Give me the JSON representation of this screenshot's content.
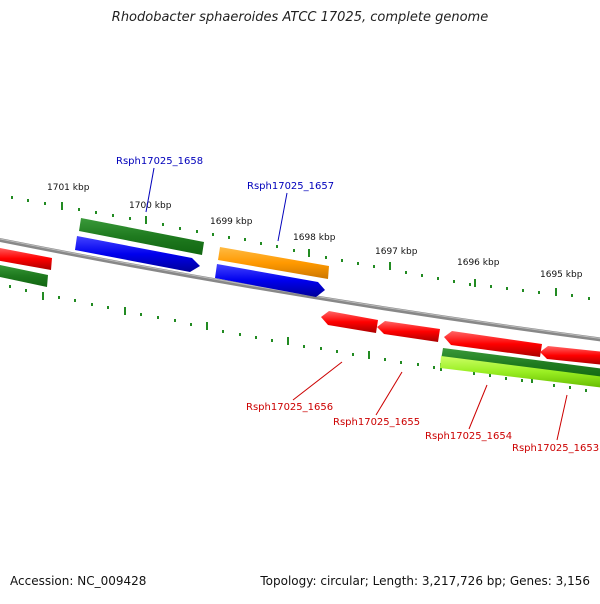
{
  "title": "Rhodobacter sphaeroides ATCC 17025, complete genome",
  "footer": {
    "accession": "Accession: NC_009428",
    "summary": "Topology: circular; Length: 3,217,726 bp; Genes: 3,156"
  },
  "ticks": [
    "1701 kbp",
    "1700 kbp",
    "1699 kbp",
    "1698 kbp",
    "1697 kbp",
    "1696 kbp",
    "1695 kbp"
  ],
  "genes": [
    {
      "id": "Rsph17025_1658",
      "color": "#0000bb"
    },
    {
      "id": "Rsph17025_1657",
      "color": "#0000bb"
    },
    {
      "id": "Rsph17025_1656",
      "color": "#cc0000"
    },
    {
      "id": "Rsph17025_1655",
      "color": "#cc0000"
    },
    {
      "id": "Rsph17025_1654",
      "color": "#cc0000"
    },
    {
      "id": "Rsph17025_1653",
      "color": "#cc0000"
    }
  ],
  "colors": {
    "cds_forward": "#0000ff",
    "cds_reverse": "#ff0000",
    "gene_dark": "#228b22",
    "gene_light": "#99ee22",
    "orange": "#ff9900",
    "backbone": "#888888"
  }
}
